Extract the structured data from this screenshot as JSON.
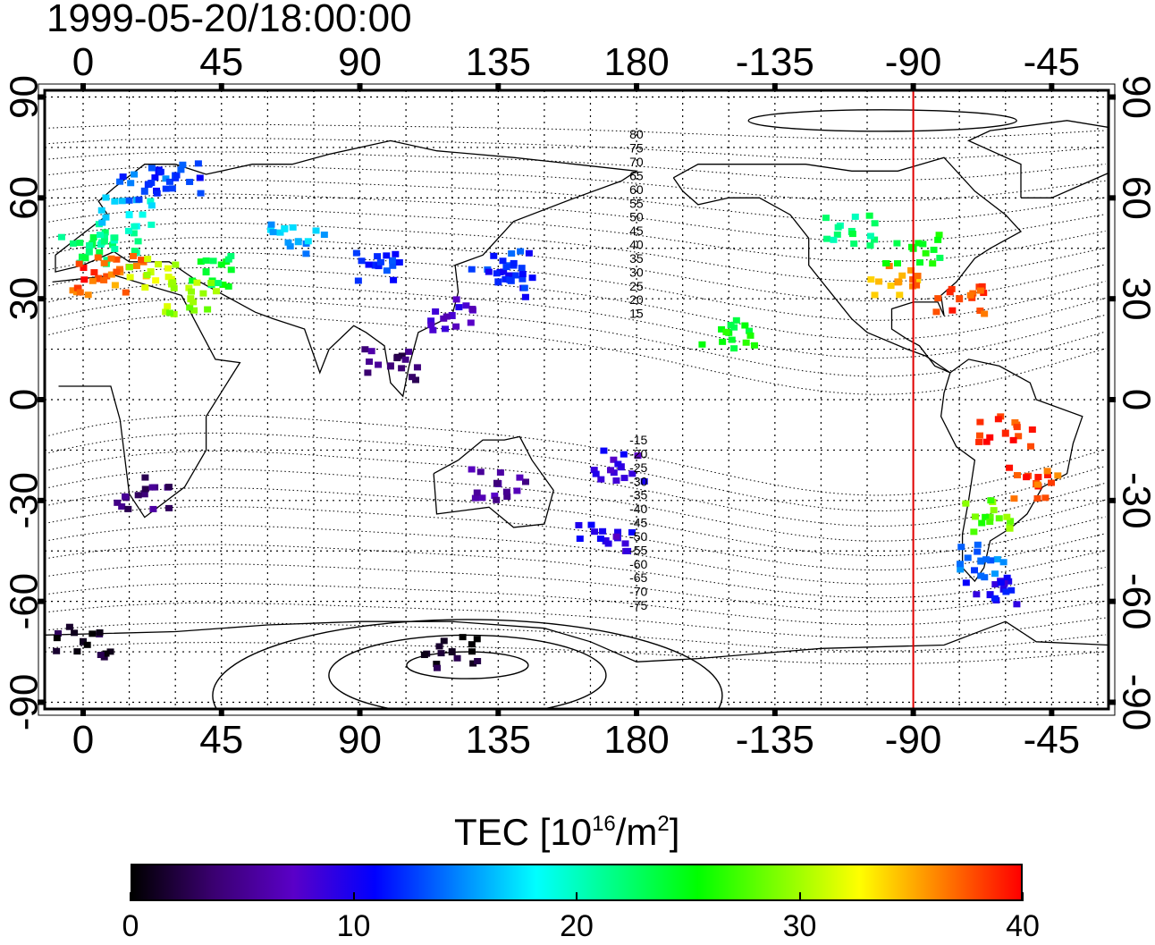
{
  "title": "1999-05-20/18:00:00",
  "map": {
    "lon_ticks": [
      0,
      45,
      90,
      135,
      180,
      -135,
      -90,
      -45
    ],
    "lon_tick_labels": [
      "0",
      "45",
      "90",
      "135",
      "180",
      "-135",
      "-90",
      "-45"
    ],
    "lat_ticks": [
      90,
      60,
      30,
      0,
      -30,
      -60,
      -90
    ],
    "lat_tick_labels": [
      "90",
      "60",
      "30",
      "0",
      "-30",
      "-60",
      "-90"
    ],
    "lon_range": [
      -12.5,
      333.5
    ],
    "lat_range": [
      -92,
      92
    ],
    "grid": "dotted, every 15 degrees",
    "marker_line_lon": -90,
    "marker_line_color": "#e00000",
    "mag_lat_labels_north": [
      "80",
      "75",
      "70",
      "65",
      "60",
      "55",
      "50",
      "45",
      "40",
      "35",
      "30",
      "25",
      "20",
      "15"
    ],
    "mag_lat_labels_south": [
      "-15",
      "-20",
      "-25",
      "-30",
      "-35",
      "-40",
      "-45",
      "-50",
      "-55",
      "-60",
      "-65",
      "-70",
      "-75"
    ],
    "chart_data": {
      "type": "heatmap",
      "description_of_values": "TEC values read from colour of scattered observation cells",
      "points": [
        {
          "lon": 2,
          "lat": 44,
          "tec": 22
        },
        {
          "lon": 10,
          "lat": 48,
          "tec": 21
        },
        {
          "lon": 15,
          "lat": 55,
          "tec": 18
        },
        {
          "lon": 20,
          "lat": 62,
          "tec": 13
        },
        {
          "lon": 30,
          "lat": 66,
          "tec": 12
        },
        {
          "lon": 5,
          "lat": 36,
          "tec": 38
        },
        {
          "lon": 12,
          "lat": 38,
          "tec": 36
        },
        {
          "lon": 22,
          "lat": 38,
          "tec": 31
        },
        {
          "lon": 40,
          "lat": 38,
          "tec": 24
        },
        {
          "lon": 35,
          "lat": 30,
          "tec": 30
        },
        {
          "lon": 70,
          "lat": 47,
          "tec": 16
        },
        {
          "lon": 95,
          "lat": 40,
          "tec": 12
        },
        {
          "lon": 120,
          "lat": 25,
          "tec": 8
        },
        {
          "lon": 135,
          "lat": 35,
          "tec": 12
        },
        {
          "lon": 140,
          "lat": 40,
          "tec": 12
        },
        {
          "lon": 100,
          "lat": 10,
          "tec": 4
        },
        {
          "lon": 135,
          "lat": -25,
          "tec": 6
        },
        {
          "lon": 170,
          "lat": -42,
          "tec": 9
        },
        {
          "lon": 175,
          "lat": -20,
          "tec": 9
        },
        {
          "lon": 20,
          "lat": -28,
          "tec": 4
        },
        {
          "lon": -95,
          "lat": 35,
          "tec": 36
        },
        {
          "lon": -90,
          "lat": 45,
          "tec": 25
        },
        {
          "lon": -110,
          "lat": 50,
          "tec": 22
        },
        {
          "lon": -75,
          "lat": 30,
          "tec": 38
        },
        {
          "lon": -60,
          "lat": -10,
          "tec": 39
        },
        {
          "lon": -50,
          "lat": -25,
          "tec": 38
        },
        {
          "lon": -65,
          "lat": -35,
          "tec": 28
        },
        {
          "lon": -68,
          "lat": -48,
          "tec": 14
        },
        {
          "lon": -65,
          "lat": -58,
          "tec": 10
        },
        {
          "lon": -150,
          "lat": 20,
          "tec": 25
        },
        {
          "lon": 120,
          "lat": -75,
          "tec": 1
        },
        {
          "lon": 0,
          "lat": -72,
          "tec": 1
        }
      ]
    }
  },
  "colorbar": {
    "title_main": "TEC  [10",
    "title_exp1": "16",
    "title_mid": "/m",
    "title_exp2": "2",
    "title_end": "]",
    "ticks": [
      0,
      10,
      20,
      30,
      40
    ],
    "tick_labels": [
      "0",
      "10",
      "20",
      "30",
      "40"
    ],
    "range": [
      0,
      40
    ],
    "colormap": [
      "#000000",
      "#3a0070",
      "#5a00c8",
      "#0000ff",
      "#0080ff",
      "#00ffff",
      "#00ff80",
      "#00ff00",
      "#80ff00",
      "#ffff00",
      "#ff8000",
      "#ff0000"
    ]
  }
}
